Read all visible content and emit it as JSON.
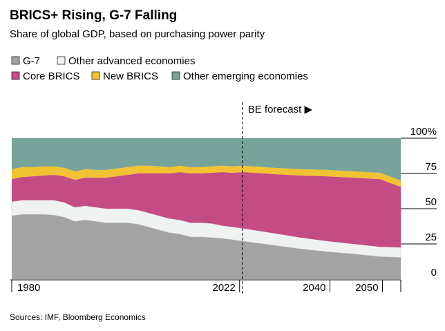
{
  "title": "BRICS+ Rising, G-7 Falling",
  "subtitle": "Share of global GDP, based on purchasing power parity",
  "legend": [
    {
      "label": "G-7",
      "color": "#a3a3a3"
    },
    {
      "label": "Other advanced economies",
      "color": "#f0f2f2"
    },
    {
      "label": "Core BRICS",
      "color": "#c44c85"
    },
    {
      "label": "New BRICS",
      "color": "#f1c232"
    },
    {
      "label": "Other emerging economies",
      "color": "#76a39a"
    }
  ],
  "forecast_label": "BE forecast ▶",
  "source": "Sources: IMF, Bloomberg Economics",
  "chart_data": {
    "type": "area",
    "stacked": true,
    "title": "BRICS+ Rising, G-7 Falling",
    "subtitle": "Share of global GDP, based on purchasing power parity",
    "xlabel": "",
    "ylabel": "",
    "xlim": [
      1980,
      2054
    ],
    "ylim": [
      0,
      100
    ],
    "x_ticks": [
      1980,
      2022,
      2040,
      2050
    ],
    "y_ticks": [
      0,
      25,
      50,
      75,
      100
    ],
    "y_tick_labels": [
      "0",
      "25",
      "50",
      "75",
      "100%"
    ],
    "forecast_start": 2024,
    "x": [
      1980,
      1982,
      1984,
      1986,
      1988,
      1990,
      1992,
      1994,
      1996,
      1998,
      2000,
      2002,
      2004,
      2006,
      2008,
      2010,
      2012,
      2014,
      2016,
      2018,
      2020,
      2022,
      2024,
      2030,
      2035,
      2040,
      2045,
      2050,
      2054
    ],
    "series": [
      {
        "name": "G-7",
        "color": "#a3a3a3",
        "values": [
          45,
          46,
          46,
          46,
          45.5,
          44,
          41,
          42,
          41,
          40,
          40,
          40,
          39,
          37,
          35,
          33,
          32,
          30,
          30,
          29.5,
          29,
          28,
          27,
          24,
          21.5,
          19.5,
          18,
          16,
          15.5
        ]
      },
      {
        "name": "Other advanced economies",
        "color": "#f0f2f2",
        "values": [
          10,
          10,
          10,
          10,
          10.5,
          10.5,
          10,
          10,
          10,
          10,
          10,
          10,
          10,
          10,
          10,
          10,
          10,
          10,
          10,
          10,
          9,
          9,
          9,
          8.5,
          8,
          7.5,
          7,
          7,
          7
        ]
      },
      {
        "name": "Core BRICS",
        "color": "#c44c85",
        "values": [
          16,
          16.5,
          17,
          17.5,
          18,
          18.5,
          19.5,
          20,
          21,
          22,
          23,
          24,
          26,
          28,
          30,
          32,
          34,
          35,
          35,
          36,
          38,
          38.5,
          40,
          42,
          44,
          46,
          47,
          48,
          43
        ]
      },
      {
        "name": "New BRICS",
        "color": "#f1c232",
        "values": [
          7,
          7,
          6.5,
          6.5,
          6,
          6,
          6,
          6,
          5.5,
          5.5,
          5.5,
          5.5,
          5.5,
          5.5,
          5,
          4.5,
          4.5,
          4.5,
          4.5,
          4.5,
          4.5,
          4.5,
          4.5,
          4.5,
          4.5,
          4.5,
          4.5,
          4.5,
          4.5
        ]
      },
      {
        "name": "Other emerging economies",
        "color": "#76a39a",
        "values": [
          22,
          20.5,
          20.5,
          20,
          20,
          21,
          23.5,
          22,
          22.5,
          22.5,
          21.5,
          20.5,
          19.5,
          19.5,
          20,
          20.5,
          19.5,
          20.5,
          20.5,
          20,
          19.5,
          20,
          19.5,
          21,
          22,
          22.5,
          23.5,
          24.5,
          30
        ]
      }
    ]
  }
}
